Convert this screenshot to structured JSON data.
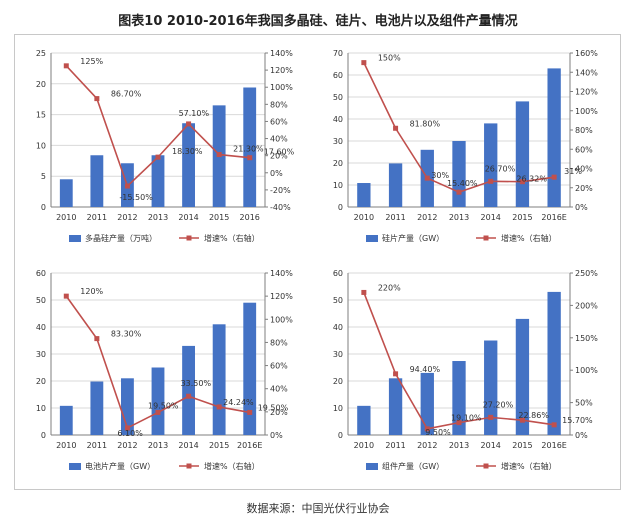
{
  "figure_title": "图表10  2010-2016年我国多晶硅、硅片、电池片以及组件产量情况",
  "source": "数据来源：中国光伏行业协会",
  "colors": {
    "bar": "#4472c4",
    "line": "#c0504d",
    "grid": "#d9d9d9",
    "axis": "#7f7f7f",
    "text": "#333333"
  },
  "chart_data": [
    {
      "type": "bar",
      "categories": [
        "2010",
        "2011",
        "2012",
        "2013",
        "2014",
        "2015",
        "2016"
      ],
      "series": [
        {
          "name": "多晶硅产量（万吨）",
          "type": "bar",
          "axis": "left",
          "values": [
            4.5,
            8.4,
            7.1,
            8.4,
            13.6,
            16.5,
            19.4
          ]
        },
        {
          "name": "增速%（右轴）",
          "type": "line",
          "axis": "right",
          "values": [
            125,
            86.7,
            -15.5,
            18.3,
            57.1,
            21.3,
            17.6
          ],
          "labels": [
            "125%",
            "86.70%",
            "-15.50%",
            "18.30%",
            "57.10%",
            "21.30%",
            "17.60%"
          ]
        }
      ],
      "ylim_left": [
        0,
        25
      ],
      "yticks_left": [
        0,
        5,
        10,
        15,
        20,
        25
      ],
      "ylim_right": [
        -40,
        140
      ],
      "yticks_right": [
        "-40%",
        "-20%",
        "0%",
        "20%",
        "40%",
        "60%",
        "80%",
        "100%",
        "120%",
        "140%"
      ],
      "legend": [
        "多晶硅产量（万吨）",
        "增速%（右轴）"
      ]
    },
    {
      "type": "bar",
      "categories": [
        "2010",
        "2011",
        "2012",
        "2013",
        "2014",
        "2015",
        "2016E"
      ],
      "series": [
        {
          "name": "硅片产量（GW）",
          "type": "bar",
          "axis": "left",
          "values": [
            10.9,
            19.8,
            26,
            30,
            38,
            48,
            63
          ]
        },
        {
          "name": "增速%（右轴）",
          "type": "line",
          "axis": "right",
          "values": [
            150,
            81.8,
            30,
            15.4,
            26.7,
            26.3,
            31
          ],
          "labels": [
            "150%",
            "81.80%",
            "30%",
            "15.40%",
            "26.70%",
            "26.32%",
            "31%"
          ]
        }
      ],
      "ylim_left": [
        0,
        70
      ],
      "yticks_left": [
        0,
        10,
        20,
        30,
        40,
        50,
        60,
        70
      ],
      "ylim_right": [
        0,
        160
      ],
      "yticks_right": [
        "0%",
        "20%",
        "40%",
        "60%",
        "80%",
        "100%",
        "120%",
        "140%",
        "160%"
      ],
      "legend": [
        "硅片产量（GW）",
        "增速%（右轴）"
      ]
    },
    {
      "type": "bar",
      "categories": [
        "2010",
        "2011",
        "2012",
        "2013",
        "2014",
        "2015",
        "2016E"
      ],
      "series": [
        {
          "name": "电池片产量（GW）",
          "type": "bar",
          "axis": "left",
          "values": [
            10.8,
            19.8,
            21,
            25,
            33,
            41,
            49
          ]
        },
        {
          "name": "增速%（右轴）",
          "type": "line",
          "axis": "right",
          "values": [
            120,
            83.3,
            6.1,
            19.5,
            33.5,
            24.24,
            19.5
          ],
          "labels": [
            "120%",
            "83.30%",
            "6.10%",
            "19.50%",
            "33.50%",
            "24.24%",
            "19.50%"
          ]
        }
      ],
      "ylim_left": [
        0,
        60
      ],
      "yticks_left": [
        0,
        10,
        20,
        30,
        40,
        50,
        60
      ],
      "ylim_right": [
        0,
        140
      ],
      "yticks_right": [
        "0%",
        "20%",
        "40%",
        "60%",
        "80%",
        "100%",
        "120%",
        "140%"
      ],
      "legend": [
        "电池片产量（GW）",
        "增速%（右轴）"
      ]
    },
    {
      "type": "bar",
      "categories": [
        "2010",
        "2011",
        "2012",
        "2013",
        "2014",
        "2015",
        "2016E"
      ],
      "series": [
        {
          "name": "组件产量（GW）",
          "type": "bar",
          "axis": "left",
          "values": [
            10.8,
            21,
            23,
            27.4,
            35,
            43,
            53
          ]
        },
        {
          "name": "增速%（右轴）",
          "type": "line",
          "axis": "right",
          "values": [
            220,
            94.4,
            9.5,
            19.1,
            27.2,
            22.86,
            15.7
          ],
          "labels": [
            "220%",
            "94.40%",
            "9.50%",
            "19.10%",
            "27.20%",
            "22.86%",
            "15.70%"
          ]
        }
      ],
      "ylim_left": [
        0,
        60
      ],
      "yticks_left": [
        0,
        10,
        20,
        30,
        40,
        50,
        60
      ],
      "ylim_right": [
        0,
        250
      ],
      "yticks_right": [
        "0%",
        "50%",
        "100%",
        "150%",
        "200%",
        "250%"
      ],
      "legend": [
        "组件产量（GW）",
        "增速%（右轴）"
      ]
    }
  ]
}
